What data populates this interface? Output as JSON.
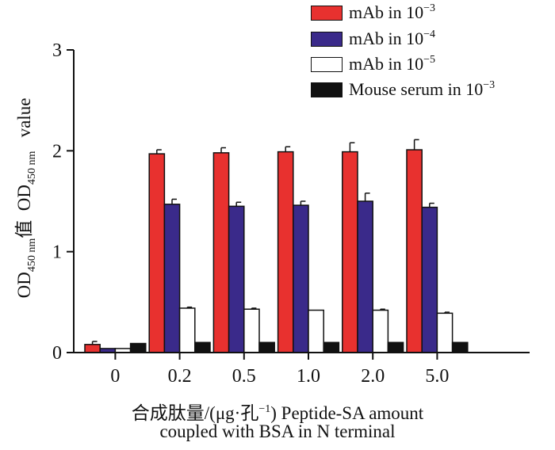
{
  "chart_data": {
    "type": "bar",
    "categories": [
      "0",
      "0.2",
      "0.5",
      "1.0",
      "2.0",
      "5.0"
    ],
    "series": [
      {
        "name": "mAb in 10",
        "exponent": "−3",
        "color": "#e8312f",
        "values": [
          0.08,
          1.97,
          1.98,
          1.99,
          1.99,
          2.01
        ],
        "errors": [
          0.03,
          0.04,
          0.05,
          0.05,
          0.09,
          0.1
        ]
      },
      {
        "name": "mAb in 10",
        "exponent": "−4",
        "color": "#3a2a8a",
        "values": [
          0.04,
          1.47,
          1.45,
          1.46,
          1.5,
          1.44
        ],
        "errors": [
          0.0,
          0.05,
          0.04,
          0.04,
          0.08,
          0.04
        ]
      },
      {
        "name": "mAb in 10",
        "exponent": "−5",
        "color": "#ffffff",
        "values": [
          0.04,
          0.44,
          0.43,
          0.42,
          0.42,
          0.39
        ],
        "errors": [
          0.0,
          0.01,
          0.01,
          0.0,
          0.01,
          0.01
        ]
      },
      {
        "name": "Mouse serum in 10",
        "exponent": "−3",
        "color": "#111111",
        "values": [
          0.09,
          0.1,
          0.1,
          0.1,
          0.1,
          0.1
        ],
        "errors": [
          0.0,
          0.0,
          0.0,
          0.0,
          0.0,
          0.0
        ]
      }
    ],
    "yticks": [
      "0",
      "1",
      "2",
      "3"
    ],
    "ylim": [
      0,
      3
    ],
    "ylabel": {
      "prefix": "OD",
      "sub": "450 nm",
      "cn": "值",
      "prefix2": "OD",
      "sub2": "450 nm",
      "suffix": "value"
    },
    "xlabel": {
      "line1": "合成肽量/(μg·孔",
      "line1_sup": "−1",
      "line1_end": ") Peptide-SA amount",
      "line2": "coupled with BSA in N terminal"
    },
    "legend_position": "top-right"
  }
}
